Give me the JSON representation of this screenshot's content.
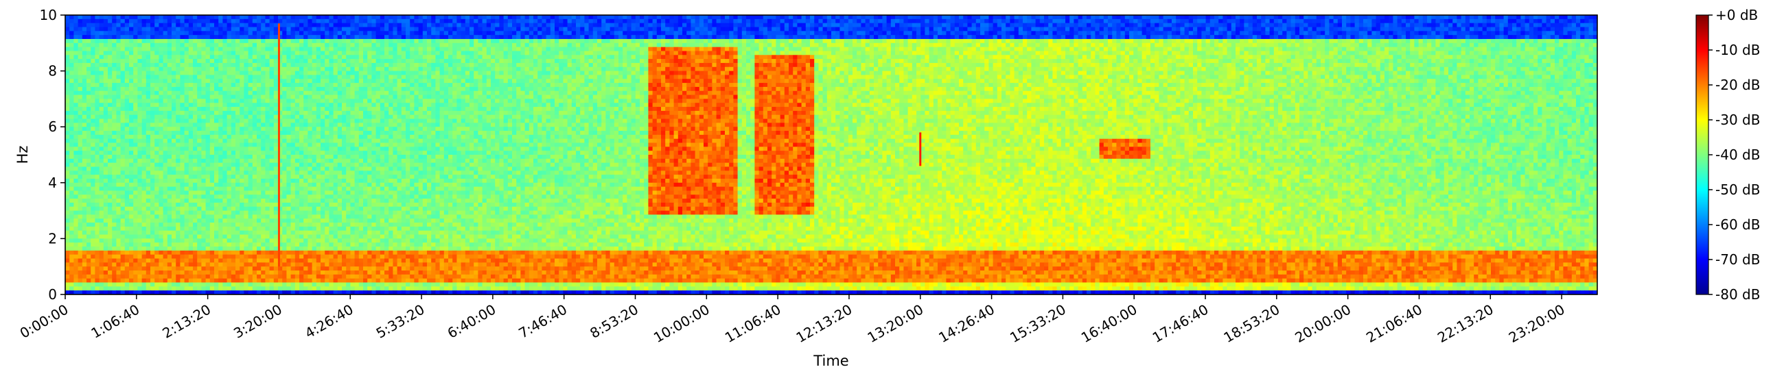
{
  "chart_data": {
    "type": "heatmap",
    "kind": "spectrogram",
    "xlabel": "Time",
    "ylabel": "Hz",
    "x_ticks": [
      "0:00:00",
      "1:06:40",
      "2:13:20",
      "3:20:00",
      "4:26:40",
      "5:33:20",
      "6:40:00",
      "7:46:40",
      "8:53:20",
      "10:00:00",
      "11:06:40",
      "12:13:20",
      "13:20:00",
      "14:26:40",
      "15:33:20",
      "16:40:00",
      "17:46:40",
      "18:53:20",
      "20:00:00",
      "21:06:40",
      "22:13:20",
      "23:20:00"
    ],
    "x_tick_seconds": [
      0,
      4000,
      8000,
      12000,
      16000,
      20000,
      24000,
      28000,
      32000,
      36000,
      40000,
      44000,
      48000,
      52000,
      56000,
      60000,
      64000,
      68000,
      72000,
      76000,
      80000,
      84000
    ],
    "xlim_seconds": [
      0,
      86000
    ],
    "y_ticks": [
      "0",
      "2",
      "4",
      "6",
      "8",
      "10"
    ],
    "ylim": [
      0,
      10
    ],
    "colorbar": {
      "colormap": "jet",
      "range_db": [
        -80,
        0
      ],
      "ticks": [
        "+0 dB",
        "-10 dB",
        "-20 dB",
        "-30 dB",
        "-40 dB",
        "-50 dB",
        "-60 dB",
        "-70 dB",
        "-80 dB"
      ],
      "tick_values": [
        0,
        -10,
        -20,
        -30,
        -40,
        -50,
        -60,
        -70,
        -80
      ]
    },
    "features": [
      {
        "kind": "band",
        "freq_hz": [
          0.4,
          1.6
        ],
        "level_db": -20
      },
      {
        "kind": "band",
        "freq_hz": [
          0.0,
          0.15
        ],
        "level_db": -70
      },
      {
        "kind": "band",
        "freq_hz": [
          9.2,
          10.0
        ],
        "level_db": -65
      },
      {
        "kind": "burst",
        "time_seconds": [
          32800,
          37800
        ],
        "freq_hz": [
          2.8,
          8.8
        ],
        "level_db": -15
      },
      {
        "kind": "burst",
        "time_seconds": [
          38800,
          42000
        ],
        "freq_hz": [
          2.8,
          8.5
        ],
        "level_db": -15
      },
      {
        "kind": "line",
        "time_seconds": 12000,
        "freq_hz": [
          1.0,
          9.7
        ],
        "level_db": -15
      },
      {
        "kind": "line",
        "time_seconds": 48000,
        "freq_hz": [
          4.6,
          5.8
        ],
        "level_db": -12
      },
      {
        "kind": "cluster",
        "time_seconds": [
          58000,
          61000
        ],
        "freq_hz": [
          4.9,
          5.6
        ],
        "level_db": -15
      }
    ]
  }
}
